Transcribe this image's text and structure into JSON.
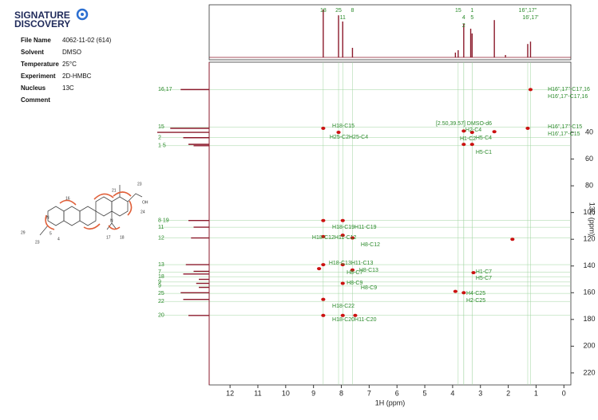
{
  "logo": {
    "line1": "SIGNATURE",
    "line2": "DISCOVERY"
  },
  "info": {
    "rows": [
      [
        "File Name",
        "4062-11-02 (614)"
      ],
      [
        "Solvent",
        "DMSO"
      ],
      [
        "Temperature",
        "25°C"
      ],
      [
        "Experiment",
        "2D-HMBC"
      ],
      [
        "Nucleus",
        "13C"
      ],
      [
        "Comment"
      ]
    ]
  },
  "molecule_labels": [
    "29",
    "23",
    "5",
    "4",
    "16",
    "21",
    "23",
    "OH",
    "24",
    "17",
    "18",
    "N",
    "N"
  ],
  "chart_data": {
    "type": "hmbc",
    "xlabel": "1H (ppm)",
    "ylabel": "13C (ppm)",
    "xlim": [
      12.75,
      -0.25
    ],
    "xticks": [
      12,
      11,
      10,
      9,
      8,
      7,
      6,
      5,
      4,
      3,
      2,
      1,
      0
    ],
    "ylim": [
      -12.5,
      229
    ],
    "yticks": [
      40,
      60,
      80,
      100,
      120,
      140,
      160,
      180,
      200,
      220
    ],
    "color": "#8b1a2b",
    "peak_color": "#cc1111",
    "label_color": "#2a8a2a",
    "proton_spectrum": {
      "x": [
        8.65,
        8.1,
        7.95,
        7.6,
        3.9,
        3.8,
        3.6,
        3.35,
        3.3,
        2.5,
        2.1,
        1.3,
        1.2
      ],
      "values": [
        100,
        88,
        75,
        20,
        10,
        15,
        70,
        60,
        50,
        78,
        5,
        28,
        33
      ]
    },
    "proton_labels": [
      {
        "text": "18",
        "x": 8.65,
        "row": 0
      },
      {
        "text": "25",
        "x": 8.1,
        "row": 0
      },
      {
        "text": "8",
        "x": 7.6,
        "row": 0
      },
      {
        "text": "11",
        "x": 7.95,
        "row": 1
      },
      {
        "text": "15",
        "x": 3.8,
        "row": 0
      },
      {
        "text": "4",
        "x": 3.6,
        "row": 1
      },
      {
        "text": "2",
        "x": 3.6,
        "row": 2
      },
      {
        "text": "1",
        "x": 3.3,
        "row": 0
      },
      {
        "text": "5",
        "x": 3.3,
        "row": 1
      },
      {
        "text": "16'',17''",
        "x": 1.3,
        "row": 0
      },
      {
        "text": "16',17'",
        "x": 1.2,
        "row": 1
      }
    ],
    "carbon_spectrum": {
      "y": [
        8,
        37,
        40,
        44,
        49,
        50,
        106,
        111,
        119,
        139,
        144,
        146,
        150,
        153,
        156,
        160,
        165,
        177
      ],
      "values": [
        55,
        75,
        100,
        50,
        40,
        30,
        40,
        30,
        35,
        45,
        30,
        50,
        20,
        25,
        20,
        55,
        50,
        40
      ]
    },
    "carbon_labels": [
      {
        "text": "16,17",
        "y": 8
      },
      {
        "text": "15",
        "y": 36
      },
      {
        "text": "2",
        "y": 44
      },
      {
        "text": "1 5",
        "y": 50
      },
      {
        "text": "8 19",
        "y": 106
      },
      {
        "text": "11",
        "y": 111
      },
      {
        "text": "12",
        "y": 119
      },
      {
        "text": "13",
        "y": 139
      },
      {
        "text": "7",
        "y": 144.5
      },
      {
        "text": "18",
        "y": 148
      },
      {
        "text": "9",
        "y": 152
      },
      {
        "text": "9",
        "y": 155
      },
      {
        "text": "25",
        "y": 160.5
      },
      {
        "text": "22",
        "y": 166.5
      },
      {
        "text": "20",
        "y": 177
      }
    ],
    "peaks": {
      "x": [
        1.2,
        1.3,
        8.65,
        8.1,
        3.6,
        3.3,
        2.5,
        3.6,
        3.3,
        8.65,
        7.95,
        8.65,
        7.95,
        7.6,
        8.65,
        7.95,
        7.6,
        7.95,
        3.25,
        3.6,
        8.65,
        8.65,
        7.95,
        1.85,
        3.9,
        8.8,
        7.5
      ],
      "y": [
        8,
        37,
        37,
        40,
        39,
        40,
        39.5,
        49,
        49,
        106,
        106,
        118,
        117,
        119,
        139,
        139,
        143,
        153,
        145,
        160,
        165,
        177,
        177,
        120,
        159,
        142,
        177
      ]
    },
    "annotations": [
      {
        "text": "H16'',17''-C17,16",
        "x": 0.58,
        "y": 7.8
      },
      {
        "text": "H16',17'-C17,16",
        "x": 0.58,
        "y": 13.1
      },
      {
        "text": "H16'',17''-C15",
        "x": 0.58,
        "y": 35.8
      },
      {
        "text": "H16',17'-C15",
        "x": 0.58,
        "y": 41.2
      },
      {
        "text": "H18-C15",
        "x": 8.33,
        "y": 35.2
      },
      {
        "text": "H25-C2H25-C4",
        "x": 8.42,
        "y": 43.6
      },
      {
        "text": "[2.50,39.57] DMSO-d6",
        "x": 4.6,
        "y": 33.4,
        "color": "#888888"
      },
      {
        "text": "H2-C4",
        "x": 3.54,
        "y": 38.2
      },
      {
        "text": "H1-C2",
        "x": 3.74,
        "y": 44.7
      },
      {
        "text": "H5-C4",
        "x": 3.17,
        "y": 44.1
      },
      {
        "text": "H5-C1",
        "x": 3.17,
        "y": 54.9
      },
      {
        "text": "H18-C19H11-C19",
        "x": 8.33,
        "y": 111
      },
      {
        "text": "H18-C12H11-C12",
        "x": 9.05,
        "y": 118.7
      },
      {
        "text": "H8-C12",
        "x": 7.3,
        "y": 124
      },
      {
        "text": "H18-C13H11-C13",
        "x": 8.45,
        "y": 137.8
      },
      {
        "text": "H8-C13",
        "x": 7.36,
        "y": 143.1
      },
      {
        "text": "H8-C7",
        "x": 7.81,
        "y": 144.9
      },
      {
        "text": "H8-C9",
        "x": 7.81,
        "y": 152.7
      },
      {
        "text": "H8-C9",
        "x": 7.3,
        "y": 156.3
      },
      {
        "text": "H1-C7",
        "x": 3.17,
        "y": 144.3
      },
      {
        "text": "H5-C7",
        "x": 3.17,
        "y": 149.1
      },
      {
        "text": "H4-C25",
        "x": 3.51,
        "y": 160.4
      },
      {
        "text": "H2-C25",
        "x": 3.51,
        "y": 165.8
      },
      {
        "text": "H18-C22",
        "x": 8.33,
        "y": 170
      },
      {
        "text": "H18-C20H11-C20",
        "x": 8.33,
        "y": 180.1
      }
    ]
  }
}
